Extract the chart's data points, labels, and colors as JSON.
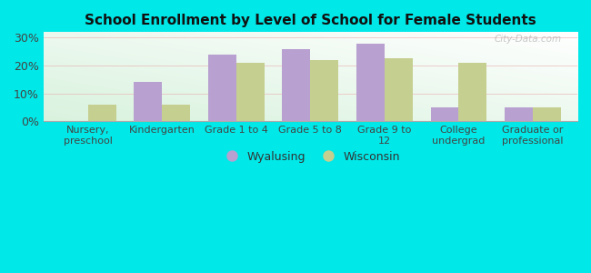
{
  "title": "School Enrollment by Level of School for Female Students",
  "categories": [
    "Nursery,\npreschool",
    "Kindergarten",
    "Grade 1 to 4",
    "Grade 5 to 8",
    "Grade 9 to\n12",
    "College\nundergrad",
    "Graduate or\nprofessional"
  ],
  "wyalusing": [
    0.0,
    14.0,
    24.0,
    26.0,
    28.0,
    5.0,
    5.0
  ],
  "wisconsin": [
    6.0,
    6.0,
    21.0,
    22.0,
    22.5,
    21.0,
    5.0
  ],
  "wyalusing_color": "#b8a0d0",
  "wisconsin_color": "#c5cf90",
  "background_color": "#00e8e8",
  "yticks": [
    0,
    10,
    20,
    30
  ],
  "ylim": [
    0,
    32
  ],
  "bar_width": 0.38,
  "legend_wyalusing": "Wyalusing",
  "legend_wisconsin": "Wisconsin",
  "watermark": "City-Data.com"
}
